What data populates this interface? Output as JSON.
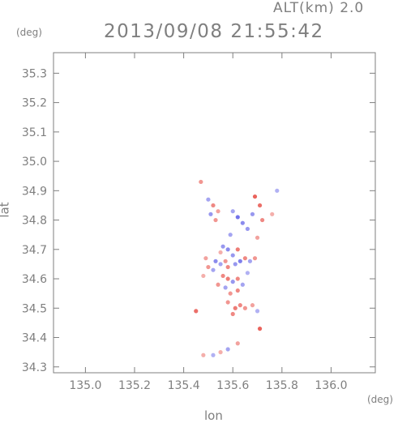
{
  "chart_data": {
    "type": "scatter",
    "title": "2013/09/08 21:55:42",
    "subtitle": "ALT(km) 2.0",
    "xlabel": "lon",
    "ylabel": "lat",
    "xunit": "(deg)",
    "yunit": "(deg)",
    "xlim": [
      134.87,
      136.18
    ],
    "ylim": [
      34.28,
      35.37
    ],
    "xticks": [
      "135.0",
      "135.2",
      "135.4",
      "135.6",
      "135.8",
      "136.0"
    ],
    "yticks": [
      "34.3",
      "34.4",
      "34.5",
      "34.6",
      "34.7",
      "34.8",
      "34.9",
      "35.0",
      "35.1",
      "35.2",
      "35.3"
    ],
    "grid": false,
    "colors": {
      "positive": "#e8564f",
      "negative": "#5a5ae6",
      "frame": "#7f7f7f"
    },
    "series": [
      {
        "values": [
          [
            135.52,
            34.85,
            0.6
          ],
          [
            135.51,
            34.82,
            -0.5
          ],
          [
            135.53,
            34.8,
            0.5
          ],
          [
            135.5,
            34.87,
            -0.4
          ],
          [
            135.54,
            34.83,
            0.4
          ],
          [
            135.47,
            34.93,
            0.5
          ],
          [
            135.62,
            34.81,
            -0.8
          ],
          [
            135.64,
            34.79,
            -0.6
          ],
          [
            135.69,
            34.88,
            0.9
          ],
          [
            135.71,
            34.85,
            0.8
          ],
          [
            135.68,
            34.82,
            -0.5
          ],
          [
            135.72,
            34.8,
            0.6
          ],
          [
            135.6,
            34.83,
            -0.4
          ],
          [
            135.66,
            34.77,
            -0.5
          ],
          [
            135.59,
            34.75,
            -0.4
          ],
          [
            135.56,
            34.71,
            -0.5
          ],
          [
            135.58,
            34.7,
            -0.6
          ],
          [
            135.6,
            34.68,
            -0.5
          ],
          [
            135.62,
            34.7,
            0.7
          ],
          [
            135.57,
            34.66,
            0.5
          ],
          [
            135.55,
            34.65,
            -0.4
          ],
          [
            135.53,
            34.66,
            -0.6
          ],
          [
            135.58,
            34.64,
            0.6
          ],
          [
            135.61,
            34.65,
            -0.5
          ],
          [
            135.63,
            34.66,
            -0.7
          ],
          [
            135.65,
            34.67,
            0.6
          ],
          [
            135.67,
            34.66,
            -0.4
          ],
          [
            135.69,
            34.67,
            0.5
          ],
          [
            135.5,
            34.64,
            0.5
          ],
          [
            135.52,
            34.63,
            -0.4
          ],
          [
            135.49,
            34.67,
            0.4
          ],
          [
            135.56,
            34.61,
            0.6
          ],
          [
            135.58,
            34.6,
            0.7
          ],
          [
            135.6,
            34.59,
            -0.5
          ],
          [
            135.62,
            34.6,
            0.6
          ],
          [
            135.54,
            34.58,
            0.5
          ],
          [
            135.57,
            34.57,
            -0.4
          ],
          [
            135.59,
            34.55,
            0.5
          ],
          [
            135.62,
            34.56,
            0.6
          ],
          [
            135.64,
            34.58,
            -0.4
          ],
          [
            135.58,
            34.52,
            0.5
          ],
          [
            135.61,
            34.5,
            0.7
          ],
          [
            135.63,
            34.51,
            0.6
          ],
          [
            135.65,
            34.5,
            0.5
          ],
          [
            135.6,
            34.48,
            0.6
          ],
          [
            135.68,
            34.51,
            0.4
          ],
          [
            135.45,
            34.49,
            0.8
          ],
          [
            135.71,
            34.43,
            0.9
          ],
          [
            135.7,
            34.49,
            -0.3
          ],
          [
            135.58,
            34.36,
            -0.4
          ],
          [
            135.55,
            34.35,
            0.3
          ],
          [
            135.52,
            34.34,
            -0.3
          ],
          [
            135.62,
            34.38,
            0.4
          ],
          [
            135.48,
            34.34,
            0.3
          ],
          [
            135.78,
            34.9,
            -0.3
          ],
          [
            135.76,
            34.82,
            0.3
          ],
          [
            135.55,
            34.69,
            0.3
          ],
          [
            135.66,
            34.62,
            -0.3
          ],
          [
            135.48,
            34.61,
            0.3
          ],
          [
            135.7,
            34.74,
            0.4
          ]
        ]
      }
    ]
  }
}
